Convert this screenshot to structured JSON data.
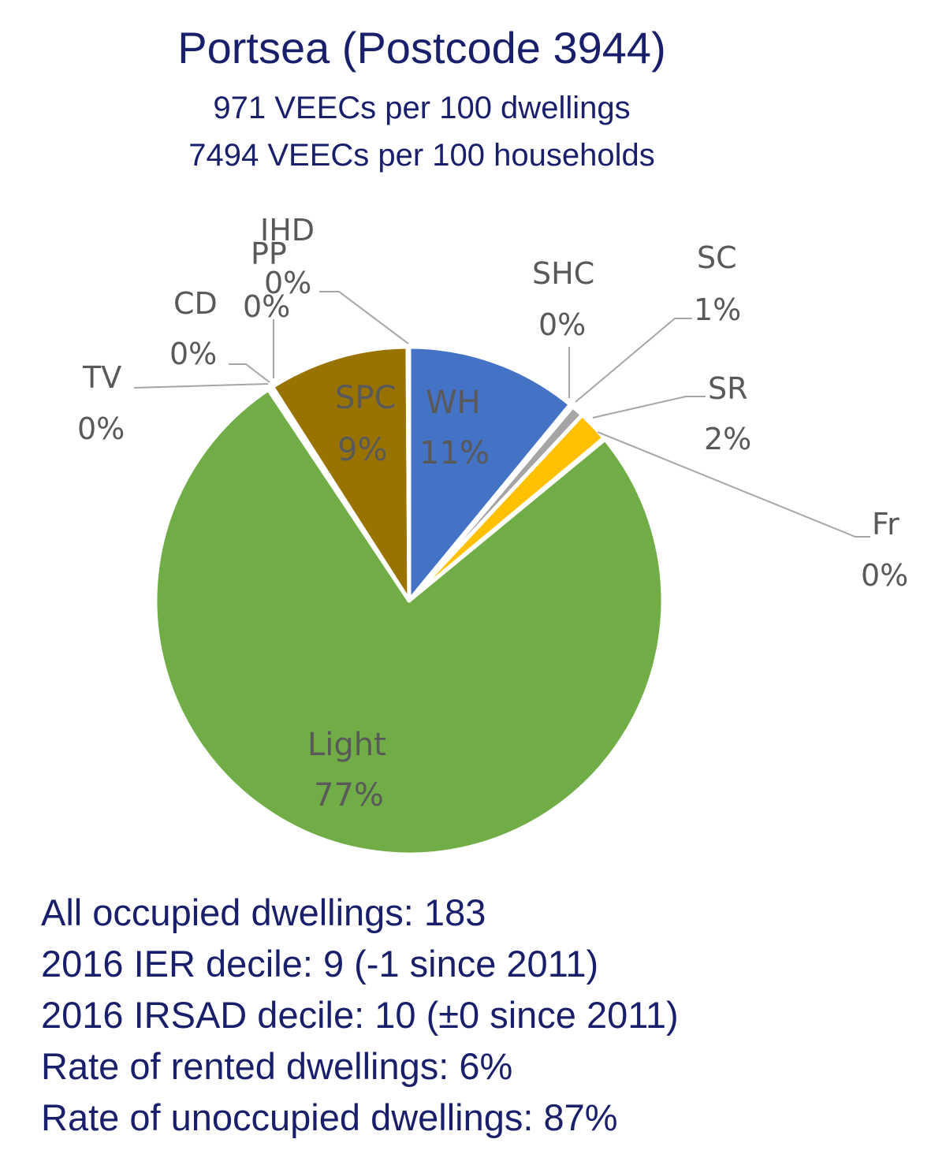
{
  "title": "Portsea (Postcode 3944)",
  "subtitle_dwellings": "971 VEECs per 100 dwellings",
  "subtitle_households": "7494 VEECs per 100 households",
  "chart_data": {
    "type": "pie",
    "title": "Portsea (Postcode 3944)",
    "slices": [
      {
        "name": "WH",
        "pct_label": "11%",
        "value": 11.0,
        "color": "#4472c4"
      },
      {
        "name": "SHC",
        "pct_label": "0%",
        "value": 0.2,
        "color": "#a5a5a5"
      },
      {
        "name": "SC",
        "pct_label": "1%",
        "value": 0.8,
        "color": "#a5a5a5"
      },
      {
        "name": "SR",
        "pct_label": "2%",
        "value": 2.0,
        "color": "#ffc000"
      },
      {
        "name": "Fr",
        "pct_label": "0%",
        "value": 0.1,
        "color": "#5b9bd5"
      },
      {
        "name": "Light",
        "pct_label": "77%",
        "value": 77.0,
        "color": "#70ad47"
      },
      {
        "name": "TV",
        "pct_label": "0%",
        "value": 0.1,
        "color": "#264478"
      },
      {
        "name": "CD",
        "pct_label": "0%",
        "value": 0.1,
        "color": "#9e480e"
      },
      {
        "name": "PP",
        "pct_label": "0%",
        "value": 0.1,
        "color": "#636363"
      },
      {
        "name": "SPC",
        "pct_label": "9%",
        "value": 9.0,
        "color": "#997300"
      },
      {
        "name": "IHD",
        "pct_label": "0%",
        "value": 0.1,
        "color": "#255e91"
      }
    ]
  },
  "stats": {
    "occupied": "All occupied dwellings: 183",
    "ier": "2016 IER decile: 9 (-1 since 2011)",
    "irsad": "2016 IRSAD decile: 10 (±0 since 2011)",
    "rented": "Rate of rented dwellings: 6%",
    "unoccupied": "Rate of unoccupied dwellings: 87%"
  }
}
